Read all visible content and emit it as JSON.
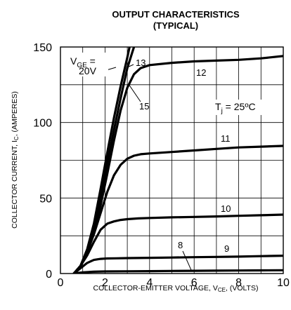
{
  "chart_data": {
    "type": "line",
    "title": "OUTPUT CHARACTERISTICS",
    "subtitle": "(TYPICAL)",
    "xlabel": "COLLECTOR-EMITTER VOLTAGE, V_CE, (VOLTS)",
    "ylabel": "COLLECTOR CURRENT, I_C, (AMPERES)",
    "xlim": [
      0,
      10
    ],
    "ylim": [
      0,
      150
    ],
    "x_ticks": [
      "0",
      "2",
      "4",
      "6",
      "8",
      "10"
    ],
    "y_ticks": [
      "0",
      "50",
      "100",
      "150"
    ],
    "grid": true,
    "annotations": {
      "vge_prefix": "V",
      "vge_sub": "GE",
      "vge_eq": " =",
      "vge_value": "20V",
      "tj_prefix": "T",
      "tj_sub": "j",
      "tj_value": " = 25ºC"
    },
    "series": [
      {
        "name": "20",
        "x": [
          0.6,
          0.9,
          1.2,
          1.5,
          1.8,
          2.1,
          2.4,
          2.7,
          3.0,
          3.1
        ],
        "y": [
          0,
          5,
          16,
          33,
          56,
          80,
          103,
          124,
          143,
          150
        ]
      },
      {
        "name": "15",
        "x": [
          0.6,
          0.9,
          1.2,
          1.5,
          1.8,
          2.1,
          2.4,
          2.7,
          3.0,
          3.3
        ],
        "y": [
          0,
          5,
          15,
          30,
          50,
          73,
          95,
          116,
          136,
          150
        ]
      },
      {
        "name": "13",
        "x": [
          0.6,
          0.9,
          1.2,
          1.5,
          1.8,
          2.1,
          2.4,
          2.7,
          3.0,
          3.3,
          3.6,
          4.0,
          5.0,
          6.0,
          7.0,
          8.0,
          9.0,
          10.0
        ],
        "y": [
          0,
          5,
          15,
          28,
          45,
          66,
          88,
          108,
          123,
          132,
          136,
          138,
          139.5,
          140.5,
          141,
          141.5,
          142.5,
          144
        ]
      },
      {
        "name": "11",
        "x": [
          0.6,
          0.9,
          1.2,
          1.5,
          1.8,
          2.1,
          2.4,
          2.7,
          3.0,
          3.3,
          3.6,
          4.0,
          5.0,
          6.0,
          7.0,
          8.0,
          9.0,
          10.0
        ],
        "y": [
          0,
          5,
          14,
          26,
          40,
          54,
          65,
          72,
          76,
          78,
          79,
          79.5,
          80.5,
          81.5,
          82.5,
          83.5,
          84,
          84.5
        ]
      },
      {
        "name": "10",
        "x": [
          0.6,
          0.9,
          1.2,
          1.5,
          1.8,
          2.1,
          2.4,
          2.7,
          3.0,
          3.5,
          4.0,
          5.0,
          6.0,
          7.0,
          8.0,
          9.0,
          10.0
        ],
        "y": [
          0,
          5,
          12,
          21,
          29,
          33,
          34.5,
          35.5,
          36,
          36.5,
          36.8,
          37.2,
          37.5,
          37.8,
          38.2,
          38.6,
          39
        ]
      },
      {
        "name": "9",
        "x": [
          0.6,
          0.9,
          1.2,
          1.5,
          1.8,
          2.1,
          2.5,
          3.0,
          4.0,
          5.0,
          6.0,
          7.0,
          8.0,
          9.0,
          10.0
        ],
        "y": [
          0,
          3.5,
          7,
          9,
          9.7,
          10,
          10.1,
          10.2,
          10.4,
          10.6,
          10.8,
          11,
          11.2,
          11.5,
          11.8
        ]
      },
      {
        "name": "8",
        "x": [
          0.6,
          1.0,
          1.5,
          2.0,
          3.0,
          4.0,
          5.0,
          6.0,
          7.0,
          8.0,
          9.0,
          10.0
        ],
        "y": [
          0,
          0.8,
          1.2,
          1.4,
          1.5,
          1.6,
          1.7,
          1.8,
          1.9,
          2.0,
          2.1,
          2.2
        ]
      }
    ],
    "curve_labels": {
      "13": "13",
      "12": "12",
      "15": "15",
      "11": "11",
      "10": "10",
      "9": "9",
      "8": "8"
    },
    "colors": {
      "line": "#000000",
      "grid": "#000000"
    }
  }
}
